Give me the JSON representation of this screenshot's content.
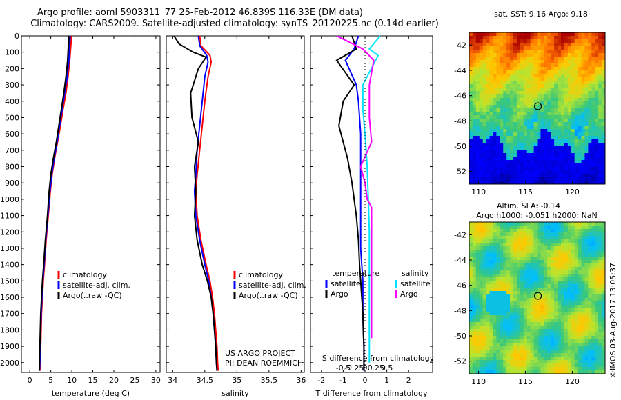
{
  "title_line1": "Argo profile: aoml 5903311_77 25-Feb-2012 46.839S 116.33E (DM data)",
  "title_line2": "Climatology: CARS2009. Satellite-adjusted climatology: synTS_20120225.nc (0.14d earlier)",
  "timestamp": "©IMOS 03-Aug-2017 13:05:37",
  "colors": {
    "climatology": "#ff0000",
    "satellite": "#0000ff",
    "argo": "#000000",
    "salinity_satellite": "#00e5ff",
    "salinity_argo": "#ff00ff"
  },
  "chart_data": [
    {
      "type": "line",
      "name": "temperature-profile",
      "xlabel": "temperature (deg C)",
      "ylabel": "",
      "xlim": [
        -2,
        31
      ],
      "ylim": [
        2060,
        0
      ],
      "xticks": [
        0,
        5,
        10,
        15,
        20,
        25,
        30
      ],
      "yticks": [
        0,
        100,
        200,
        300,
        400,
        500,
        600,
        700,
        800,
        900,
        1000,
        1100,
        1200,
        1300,
        1400,
        1500,
        1600,
        1700,
        1800,
        1900,
        2000
      ],
      "legend": [
        "climatology",
        "satellite-adj. clim.",
        "Argo(..raw -QC)"
      ],
      "series": [
        {
          "name": "climatology",
          "color": "#ff0000",
          "x": [
            9.9,
            9.8,
            9.5,
            9.1,
            8.6,
            7.9,
            7.3,
            6.6,
            5.9,
            5.3,
            4.9,
            4.4,
            3.9,
            3.5,
            3.2,
            3.0,
            2.8,
            2.7,
            2.6,
            2.5,
            2.4
          ],
          "y": [
            0,
            50,
            150,
            250,
            350,
            450,
            550,
            650,
            750,
            850,
            950,
            1100,
            1250,
            1400,
            1500,
            1600,
            1700,
            1800,
            1900,
            2000,
            2050
          ]
        },
        {
          "name": "satellite-adj. clim.",
          "color": "#0000ff",
          "x": [
            9.6,
            9.5,
            9.3,
            8.9,
            8.3,
            7.7,
            7.1,
            6.5,
            5.8,
            5.2,
            4.8,
            4.3,
            3.8,
            3.4,
            3.1,
            2.9,
            2.7,
            2.6,
            2.5,
            2.4,
            2.3
          ],
          "y": [
            0,
            50,
            150,
            250,
            350,
            450,
            550,
            650,
            750,
            850,
            950,
            1100,
            1250,
            1400,
            1500,
            1600,
            1700,
            1800,
            1900,
            2000,
            2050
          ]
        },
        {
          "name": "Argo(..raw -QC)",
          "color": "#000000",
          "x": [
            9.3,
            9.2,
            9.0,
            8.6,
            8.1,
            7.5,
            6.9,
            6.3,
            5.6,
            5.0,
            4.6,
            4.2,
            3.7,
            3.3,
            3.0,
            2.8,
            2.6,
            2.5,
            2.4,
            2.3,
            2.25
          ],
          "y": [
            0,
            50,
            150,
            250,
            350,
            450,
            550,
            650,
            750,
            850,
            950,
            1100,
            1250,
            1400,
            1500,
            1600,
            1700,
            1800,
            1900,
            2000,
            2050
          ]
        }
      ]
    },
    {
      "type": "line",
      "name": "salinity-profile",
      "xlabel": "salinity",
      "ylabel": "",
      "xlim": [
        33.9,
        36.05
      ],
      "ylim": [
        2060,
        0
      ],
      "xticks": [
        34,
        34.5,
        35,
        35.5,
        36
      ],
      "legend": [
        "climatology",
        "satellite-adj. clim.",
        "Argo(..raw -QC)"
      ],
      "annotation": [
        "US ARGO PROJECT",
        "PI: DEAN ROEMMICH"
      ],
      "series": [
        {
          "name": "climatology",
          "color": "#ff0000",
          "x": [
            34.42,
            34.44,
            34.58,
            34.6,
            34.55,
            34.5,
            34.46,
            34.42,
            34.38,
            34.36,
            34.38,
            34.44,
            34.52,
            34.58,
            34.62,
            34.65,
            34.67,
            34.69,
            34.7,
            34.71
          ],
          "y": [
            0,
            60,
            120,
            160,
            250,
            400,
            550,
            700,
            850,
            950,
            1100,
            1250,
            1400,
            1500,
            1600,
            1700,
            1800,
            1900,
            2000,
            2050
          ]
        },
        {
          "name": "satellite-adj. clim.",
          "color": "#0000ff",
          "x": [
            34.4,
            34.42,
            34.53,
            34.55,
            34.5,
            34.46,
            34.42,
            34.38,
            34.36,
            34.34,
            34.36,
            34.42,
            34.5,
            34.56,
            34.6,
            34.63,
            34.65,
            34.67,
            34.68,
            34.69
          ],
          "y": [
            0,
            60,
            120,
            160,
            250,
            400,
            550,
            700,
            850,
            950,
            1100,
            1250,
            1400,
            1500,
            1600,
            1700,
            1800,
            1900,
            2000,
            2050
          ]
        },
        {
          "name": "Argo(..raw -QC)",
          "color": "#000000",
          "x": [
            34.02,
            34.1,
            34.32,
            34.52,
            34.4,
            34.28,
            34.3,
            34.4,
            34.34,
            34.36,
            34.34,
            34.38,
            34.46,
            34.54,
            34.6,
            34.63,
            34.65,
            34.67,
            34.68,
            34.69
          ],
          "y": [
            0,
            50,
            100,
            130,
            200,
            350,
            500,
            650,
            800,
            950,
            1100,
            1250,
            1400,
            1500,
            1600,
            1700,
            1800,
            1900,
            2000,
            2050
          ]
        }
      ]
    },
    {
      "type": "line",
      "name": "difference-profile",
      "xlabel": "T difference from climatology",
      "xlabel_top": "S difference from climatology",
      "ylabel": "",
      "xlim": [
        -2.5,
        3.1
      ],
      "ylim": [
        2060,
        0
      ],
      "xticks": [
        -2,
        -1,
        0,
        1,
        2
      ],
      "s_xticks": [
        "-0.5",
        "-0.25",
        "0",
        "0.25",
        "0.5"
      ],
      "legend_temperature": [
        "temperature",
        "satellite",
        "Argo"
      ],
      "legend_salinity": [
        "salinity",
        "satellite",
        "Argo"
      ],
      "series": [
        {
          "name": "temperature satellite",
          "color": "#0000ff",
          "x": [
            -0.3,
            -0.5,
            -0.9,
            -0.4,
            -0.3,
            -0.2,
            -0.2,
            -0.2,
            -0.2,
            -0.2,
            -0.15,
            -0.1,
            -0.1,
            -0.1,
            -0.08,
            -0.05,
            -0.05,
            -0.05
          ],
          "y": [
            0,
            80,
            150,
            300,
            400,
            600,
            800,
            1000,
            1200,
            1300,
            1400,
            1500,
            1600,
            1700,
            1800,
            1900,
            2000,
            2050
          ]
        },
        {
          "name": "temperature Argo",
          "color": "#000000",
          "x": [
            -0.6,
            -0.4,
            -1.3,
            -0.5,
            -1.0,
            -1.2,
            -0.8,
            -0.6,
            -0.4,
            -0.3,
            -0.25,
            -0.2,
            -0.15,
            -0.1,
            -0.08,
            -0.05,
            -0.05,
            -0.05
          ],
          "y": [
            0,
            80,
            150,
            300,
            400,
            550,
            750,
            900,
            1100,
            1250,
            1400,
            1500,
            1600,
            1700,
            1800,
            1900,
            2000,
            2050
          ]
        },
        {
          "name": "salinity satellite",
          "color": "#00e5ff",
          "x": [
            0.7,
            0.2,
            0.6,
            -0.1,
            -0.1,
            0.0,
            0.1,
            0.15,
            0.2,
            0.2,
            0.2,
            0.2,
            0.2,
            0.2,
            0.2,
            0.2,
            0.2
          ],
          "y": [
            0,
            80,
            120,
            300,
            450,
            600,
            800,
            1000,
            1200,
            1300,
            1400,
            1500,
            1600,
            1700,
            1800,
            1900,
            2000
          ]
        },
        {
          "name": "salinity Argo",
          "color": "#ff00ff",
          "x": [
            -1.3,
            -0.1,
            0.4,
            0.2,
            0.2,
            0.3,
            -0.2,
            0.0,
            0.1,
            0.3,
            0.3,
            0.3,
            0.3,
            0.3,
            0.3
          ],
          "y": [
            0,
            80,
            150,
            300,
            500,
            650,
            800,
            900,
            1000,
            1050,
            1200,
            1400,
            1600,
            1750,
            1850
          ]
        }
      ]
    },
    {
      "type": "heatmap",
      "name": "sst-map",
      "title": "sat. SST: 9.16 Argo: 9.18",
      "xlim": [
        109,
        123.5
      ],
      "ylim": [
        -53,
        -41
      ],
      "xticks": [
        110,
        115,
        120
      ],
      "yticks": [
        -42,
        -44,
        -46,
        -48,
        -50,
        -52
      ],
      "marker": {
        "lon": 116.33,
        "lat": -46.84
      }
    },
    {
      "type": "heatmap",
      "name": "sla-map",
      "title": "Altim. SLA: -0.14",
      "subtitle": "Argo h1000: -0.051 h2000: NaN",
      "xlim": [
        109,
        123.5
      ],
      "ylim": [
        -53,
        -41
      ],
      "xticks": [
        110,
        115,
        120
      ],
      "yticks": [
        -42,
        -44,
        -46,
        -48,
        -50,
        -52
      ],
      "marker": {
        "lon": 116.33,
        "lat": -46.84
      }
    }
  ]
}
